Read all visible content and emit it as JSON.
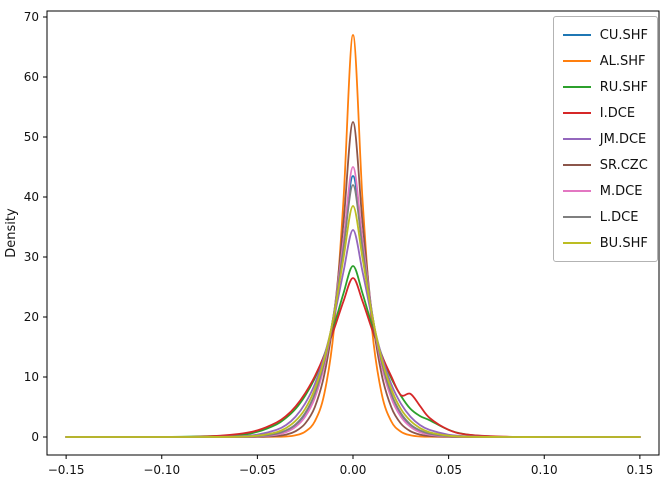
{
  "chart_data": {
    "type": "line",
    "subtype": "kde-density",
    "title": "",
    "xlabel": "",
    "ylabel": "Density",
    "xlim": [
      -0.16,
      0.16
    ],
    "ylim": [
      -3,
      71
    ],
    "x_ticks": [
      -0.15,
      -0.1,
      -0.05,
      0.0,
      0.05,
      0.1,
      0.15
    ],
    "y_ticks": [
      0,
      10,
      20,
      30,
      40,
      50,
      60,
      70
    ],
    "grid": false,
    "legend_position": "upper right",
    "x": [
      -0.15,
      -0.12,
      -0.1,
      -0.08,
      -0.06,
      -0.05,
      -0.04,
      -0.035,
      -0.03,
      -0.025,
      -0.02,
      -0.015,
      -0.01,
      -0.005,
      0,
      0.005,
      0.01,
      0.015,
      0.02,
      0.025,
      0.03,
      0.035,
      0.04,
      0.05,
      0.06,
      0.08,
      0.1,
      0.12,
      0.15
    ],
    "series": [
      {
        "name": "CU.SHF",
        "color": "#1f77b4",
        "peak": 43.5,
        "y": [
          0,
          0,
          0,
          0,
          0.02,
          0.1,
          0.46,
          0.95,
          1.9,
          3.7,
          6.9,
          12.2,
          20.6,
          32.1,
          43.5,
          32.1,
          20.6,
          12.2,
          6.9,
          3.7,
          1.9,
          0.95,
          0.46,
          0.1,
          0.02,
          0,
          0,
          0,
          0
        ]
      },
      {
        "name": "AL.SHF",
        "color": "#ff7f0e",
        "peak": 67,
        "y": [
          0,
          0,
          0,
          0,
          0,
          0.02,
          0.05,
          0.08,
          0.28,
          0.9,
          2.6,
          7.2,
          17.9,
          39.3,
          67,
          39.3,
          17.9,
          7.2,
          2.6,
          0.9,
          0.28,
          0.08,
          0.05,
          0.02,
          0,
          0,
          0,
          0,
          0
        ]
      },
      {
        "name": "RU.SHF",
        "color": "#2ca02c",
        "peak": 28.5,
        "y": [
          0,
          0,
          0,
          0.1,
          0.33,
          0.86,
          2.1,
          3.2,
          4.7,
          6.9,
          9.8,
          13.7,
          18.5,
          23.9,
          28.5,
          23.9,
          18.5,
          13.7,
          9.8,
          6.9,
          4.7,
          3.5,
          2.8,
          1.2,
          0.4,
          0,
          0,
          0,
          0
        ]
      },
      {
        "name": "I.DCE",
        "color": "#d62728",
        "peak": 26.5,
        "y": [
          0,
          0,
          0,
          0.05,
          0.5,
          1.1,
          2.4,
          3.5,
          5.1,
          7.3,
          10.1,
          13.6,
          17.9,
          22.6,
          26.5,
          22.6,
          17.9,
          13.6,
          10.1,
          7.0,
          7.2,
          5.2,
          3.2,
          1.2,
          0.4,
          0.05,
          0,
          0,
          0
        ]
      },
      {
        "name": "JM.DCE",
        "color": "#9467bd",
        "peak": 34.5,
        "y": [
          0,
          0,
          0,
          0,
          0.12,
          0.39,
          1.19,
          2.0,
          3.4,
          5.6,
          8.8,
          13.5,
          19.8,
          27.5,
          34.5,
          27.5,
          19.8,
          13.5,
          8.8,
          5.6,
          3.4,
          2.0,
          1.19,
          0.39,
          0.12,
          0,
          0,
          0,
          0
        ]
      },
      {
        "name": "SR.CZC",
        "color": "#8c564b",
        "peak": 52.5,
        "y": [
          0,
          0,
          0,
          0,
          0,
          0.02,
          0.16,
          0.4,
          0.97,
          2.25,
          4.97,
          10.4,
          20.2,
          35.6,
          52.5,
          35.6,
          20.2,
          10.4,
          4.97,
          2.25,
          0.97,
          0.4,
          0.16,
          0.02,
          0,
          0,
          0,
          0,
          0
        ]
      },
      {
        "name": "M.DCE",
        "color": "#e377c2",
        "peak": 45,
        "y": [
          0,
          0,
          0,
          0,
          0.02,
          0.08,
          0.39,
          0.8,
          1.7,
          3.4,
          6.5,
          11.9,
          20.6,
          32.7,
          45,
          32.7,
          20.6,
          11.9,
          6.5,
          3.4,
          1.7,
          0.8,
          0.39,
          0.08,
          0.02,
          0,
          0,
          0,
          0
        ]
      },
      {
        "name": "L.DCE",
        "color": "#7f7f7f",
        "peak": 42,
        "y": [
          0,
          0,
          0,
          0,
          0.03,
          0.13,
          0.55,
          1.1,
          2.1,
          4.0,
          7.2,
          12.5,
          20.5,
          31.4,
          42,
          31.4,
          20.5,
          12.5,
          7.2,
          4.0,
          2.1,
          1.1,
          0.55,
          0.13,
          0.03,
          0,
          0,
          0,
          0
        ]
      },
      {
        "name": "BU.SHF",
        "color": "#bcbd22",
        "peak": 38.5,
        "y": [
          0,
          0,
          0,
          0,
          0.05,
          0.22,
          0.8,
          1.5,
          2.7,
          4.7,
          8.0,
          13.0,
          20.3,
          29.7,
          38.5,
          29.7,
          20.3,
          13.0,
          8.0,
          4.7,
          2.7,
          1.5,
          0.8,
          0.22,
          0.05,
          0,
          0,
          0,
          0
        ]
      }
    ]
  }
}
